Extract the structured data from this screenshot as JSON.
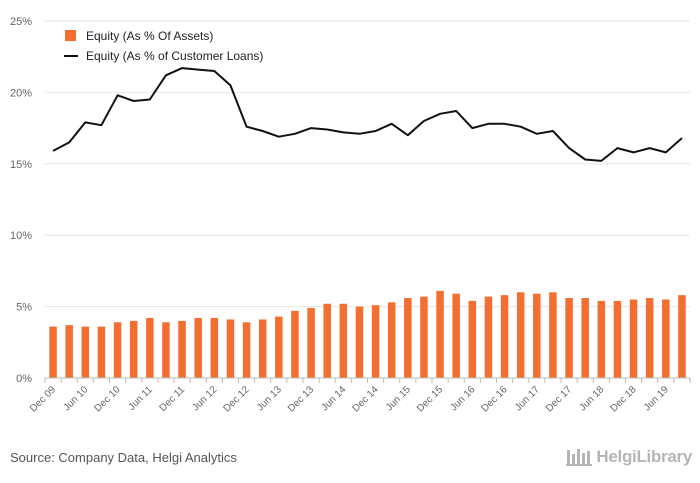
{
  "source": "Source: Company Data, Helgi Analytics",
  "logo": "HelgiLibrary",
  "colors": {
    "bar": "#f36f2f",
    "line": "#111111",
    "grid": "#e6e6e6",
    "axis_text": "#666666"
  },
  "chart_data": {
    "type": "bar",
    "x_ticks": [
      "Dec 09",
      "Jun 10",
      "Dec 10",
      "Jun 11",
      "Dec 11",
      "Jun 12",
      "Dec 12",
      "Jun 13",
      "Dec 13",
      "Jun 14",
      "Dec 14",
      "Jun 15",
      "Dec 15",
      "Jun 16",
      "Dec 16",
      "Jun 17",
      "Dec 17",
      "Jun 18",
      "Dec 18",
      "Jun 19"
    ],
    "y_ticks": [
      "0%",
      "5%",
      "10%",
      "15%",
      "20%",
      "25%"
    ],
    "ylim": [
      0,
      25
    ],
    "grid": true,
    "legend_position": "top-left",
    "series": [
      {
        "name": "Equity (As % Of Assets)",
        "type": "bar",
        "values": [
          3.6,
          3.7,
          3.6,
          3.6,
          3.9,
          4.0,
          4.2,
          3.9,
          4.0,
          4.2,
          4.2,
          4.1,
          3.9,
          4.1,
          4.3,
          4.7,
          4.9,
          5.2,
          5.2,
          5.0,
          5.1,
          5.3,
          5.6,
          5.7,
          6.1,
          5.9,
          5.4,
          5.7,
          5.8,
          6.0,
          5.9,
          6.0,
          5.6,
          5.6,
          5.4,
          5.4,
          5.5,
          5.6,
          5.5,
          5.8
        ]
      },
      {
        "name": "Equity (As % of Customer Loans)",
        "type": "line",
        "values": [
          15.9,
          16.5,
          17.9,
          17.7,
          19.8,
          19.4,
          19.5,
          21.2,
          21.7,
          21.6,
          21.5,
          20.5,
          17.6,
          17.3,
          16.9,
          17.1,
          17.5,
          17.4,
          17.2,
          17.1,
          17.3,
          17.8,
          17.0,
          18.0,
          18.5,
          18.7,
          17.5,
          17.8,
          17.8,
          17.6,
          17.1,
          17.3,
          16.1,
          15.3,
          15.2,
          16.1,
          15.8,
          16.1,
          15.8,
          16.8
        ]
      }
    ]
  }
}
